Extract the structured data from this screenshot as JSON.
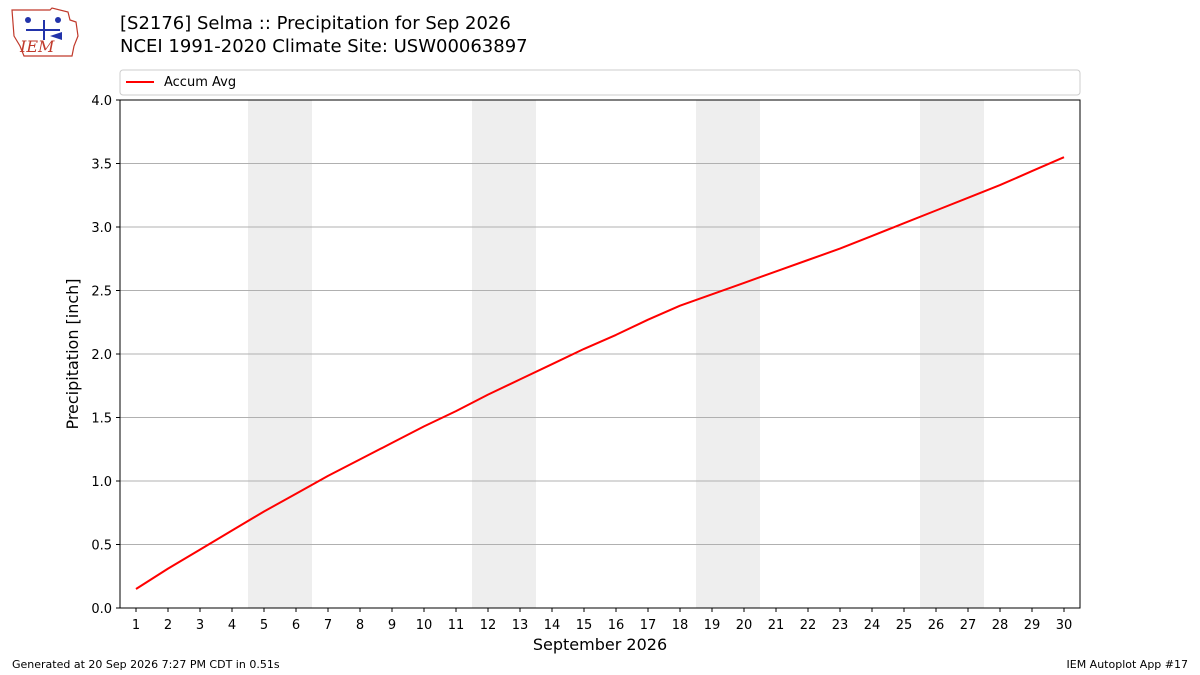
{
  "header": {
    "title_line1": "[S2176] Selma :: Precipitation for Sep 2026",
    "title_line2": "NCEI 1991-2020 Climate Site: USW00063897"
  },
  "logo": {
    "text": "IEM",
    "icon": "iem-logo-icon"
  },
  "footer": {
    "generated": "Generated at 20 Sep 2026 7:27 PM CDT in 0.51s",
    "app": "IEM Autoplot App #17"
  },
  "colors": {
    "line": "#ff0000",
    "weekend_band": "#eeeeee",
    "grid": "#b0b0b0"
  },
  "chart_data": {
    "type": "line",
    "xlabel": "September 2026",
    "ylabel": "Precipitation [inch]",
    "xlim": [
      0.5,
      30.5
    ],
    "ylim": [
      0.0,
      4.0
    ],
    "x_ticks": [
      1,
      2,
      3,
      4,
      5,
      6,
      7,
      8,
      9,
      10,
      11,
      12,
      13,
      14,
      15,
      16,
      17,
      18,
      19,
      20,
      21,
      22,
      23,
      24,
      25,
      26,
      27,
      28,
      29,
      30
    ],
    "y_ticks": [
      "0.0",
      "0.5",
      "1.0",
      "1.5",
      "2.0",
      "2.5",
      "3.0",
      "3.5",
      "4.0"
    ],
    "grid": "horizontal",
    "legend": "top-left",
    "weekend_days": [
      5,
      6,
      12,
      13,
      19,
      20,
      26,
      27
    ],
    "series": [
      {
        "name": "Accum Avg",
        "color": "#ff0000",
        "x": [
          1,
          2,
          3,
          4,
          5,
          6,
          7,
          8,
          9,
          10,
          11,
          12,
          13,
          14,
          15,
          16,
          17,
          18,
          19,
          20,
          21,
          22,
          23,
          24,
          25,
          26,
          27,
          28,
          29,
          30
        ],
        "values": [
          0.15,
          0.31,
          0.46,
          0.61,
          0.76,
          0.9,
          1.04,
          1.17,
          1.3,
          1.43,
          1.55,
          1.68,
          1.8,
          1.92,
          2.04,
          2.15,
          2.27,
          2.38,
          2.47,
          2.56,
          2.65,
          2.74,
          2.83,
          2.93,
          3.03,
          3.13,
          3.23,
          3.33,
          3.44,
          3.55
        ]
      }
    ]
  }
}
